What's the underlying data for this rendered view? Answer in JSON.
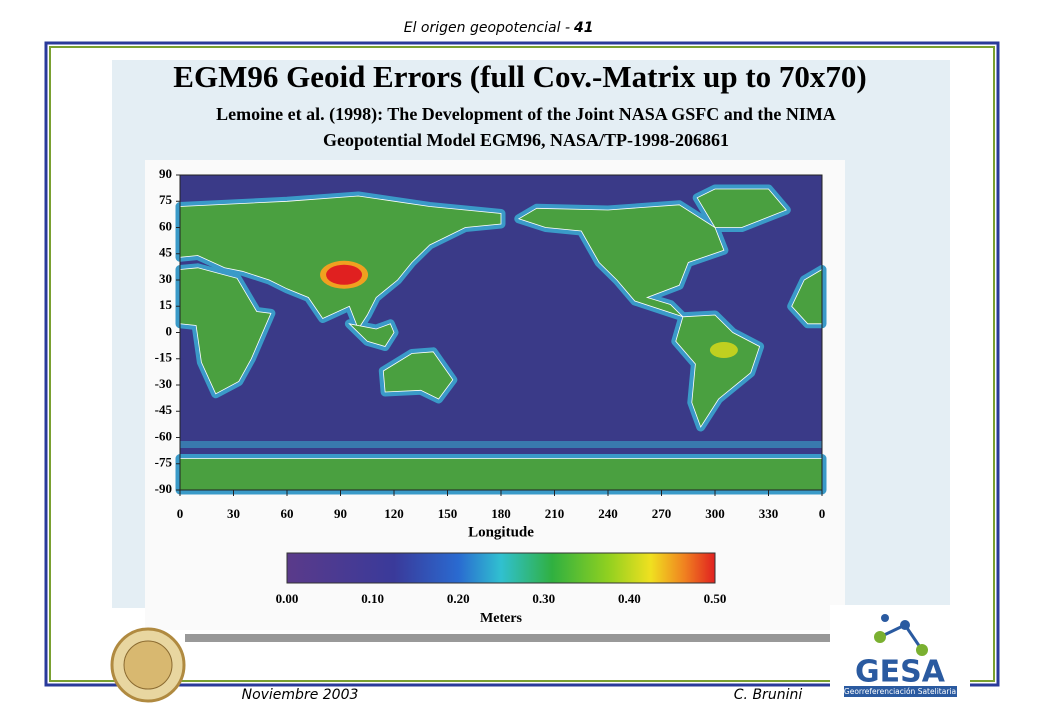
{
  "header": {
    "title": "El origen geopotencial -",
    "page": "41"
  },
  "figure": {
    "title": "EGM96 Geoid Errors (full Cov.-Matrix up to 70x70)",
    "subtitle_lines": [
      "Lemoine et al. (1998): The Development of the Joint NASA GSFC and the NIMA",
      "Geopotential Model EGM96, NASA/TP-1998-206861"
    ],
    "yticks": [
      "90",
      "75",
      "60",
      "45",
      "30",
      "15",
      "0",
      "-15",
      "-30",
      "-45",
      "-60",
      "-75",
      "-90"
    ],
    "xticks": [
      "0",
      "30",
      "60",
      "90",
      "120",
      "150",
      "180",
      "210",
      "240",
      "270",
      "300",
      "330",
      "0"
    ],
    "xlabel": "Longitude",
    "colorbar_ticks": [
      "0.00",
      "0.10",
      "0.20",
      "0.30",
      "0.40",
      "0.50"
    ],
    "colorbar_label": "Meters"
  },
  "footer": {
    "date": "Noviembre 2003",
    "author": "C. Brunini"
  },
  "logo": {
    "name": "GESA",
    "tagline": "Georreferenciación Satelitaria"
  }
}
